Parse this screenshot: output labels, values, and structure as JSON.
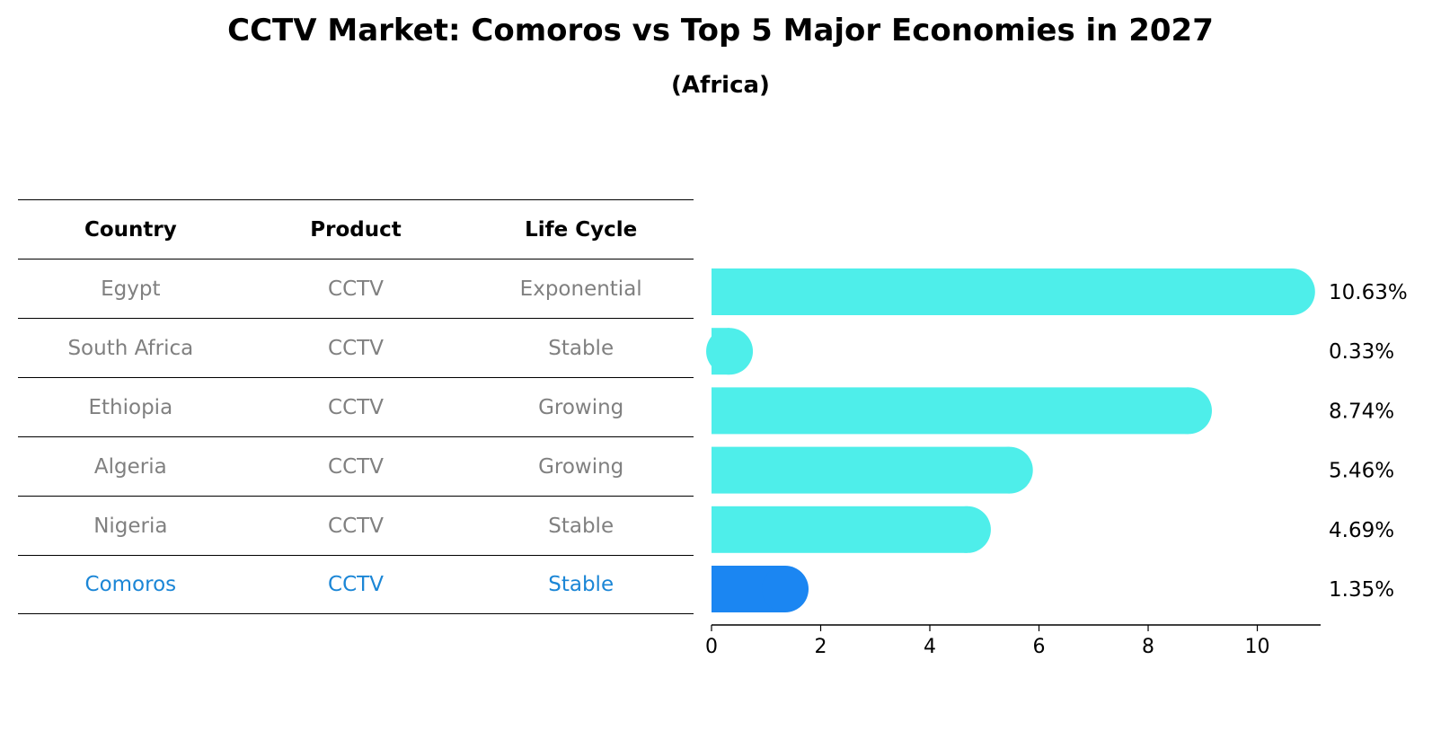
{
  "title": "CCTV Market: Comoros vs Top 5 Major Economies in 2027",
  "subtitle": "(Africa)",
  "table": {
    "headers": [
      "Country",
      "Product",
      "Life Cycle"
    ],
    "rows": [
      [
        "Egypt",
        "CCTV",
        "Exponential"
      ],
      [
        "South Africa",
        "CCTV",
        "Stable"
      ],
      [
        "Ethiopia",
        "CCTV",
        "Growing"
      ],
      [
        "Algeria",
        "CCTV",
        "Growing"
      ],
      [
        "Nigeria",
        "CCTV",
        "Stable"
      ],
      [
        "Comoros",
        "CCTV",
        "Stable"
      ]
    ],
    "highlight_row": 5
  },
  "chart_data": {
    "type": "bar",
    "orientation": "horizontal",
    "categories": [
      "Egypt",
      "South Africa",
      "Ethiopia",
      "Algeria",
      "Nigeria",
      "Comoros"
    ],
    "values": [
      10.63,
      0.33,
      8.74,
      5.46,
      4.69,
      1.35
    ],
    "value_labels": [
      "10.63%",
      "0.33%",
      "8.74%",
      "5.46%",
      "4.69%",
      "1.35%"
    ],
    "xlim": [
      0,
      11.16
    ],
    "xticks": [
      0,
      2,
      4,
      6,
      8,
      10
    ],
    "colors": {
      "default": "#4eeeea",
      "highlight": "#1b86f2"
    },
    "highlight_index": 5,
    "grid": false
  }
}
